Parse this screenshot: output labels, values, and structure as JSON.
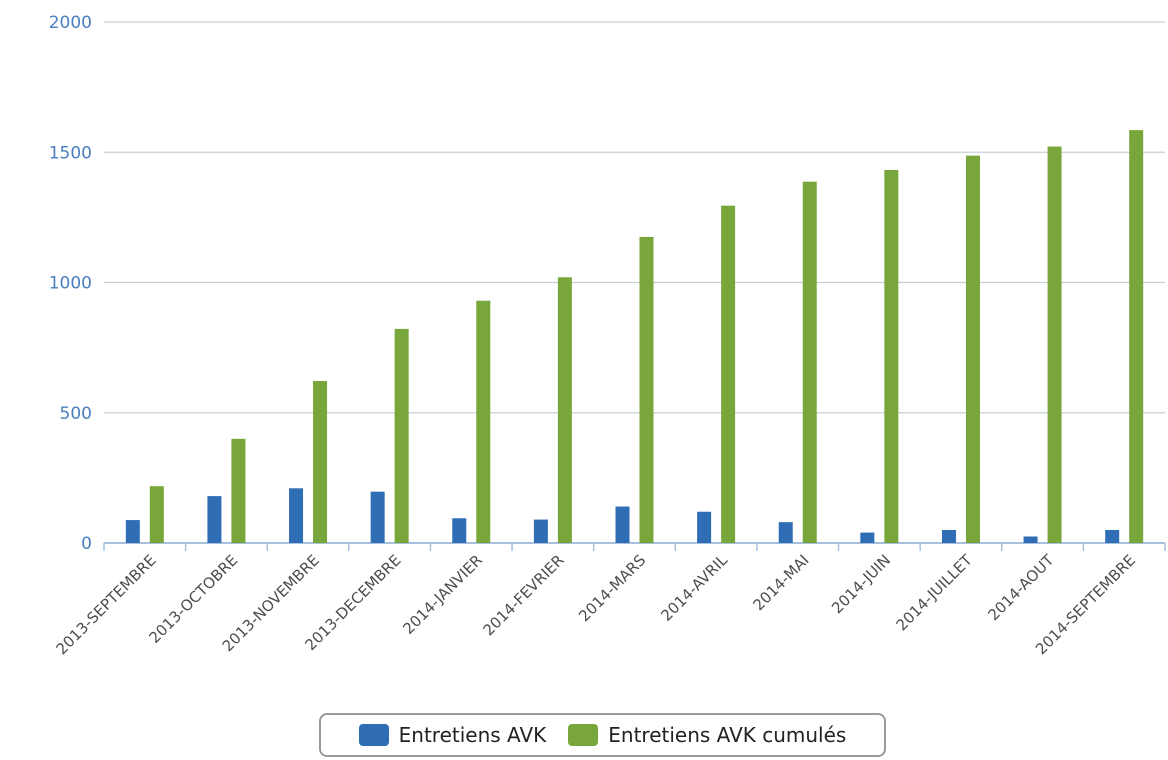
{
  "chart_data": {
    "type": "bar",
    "categories": [
      "2013-SEPTEMBRE",
      "2013-OCTOBRE",
      "2013-NOVEMBRE",
      "2013-DECEMBRE",
      "2014-JANVIER",
      "2014-FEVRIER",
      "2014-MARS",
      "2014-AVRIL",
      "2014-MAI",
      "2014-JUIN",
      "2014-JUILLET",
      "2014-AOUT",
      "2014-SEPTEMBRE"
    ],
    "series": [
      {
        "name": "Entretiens AVK",
        "color": "#2f6db5",
        "values": [
          88,
          180,
          210,
          197,
          95,
          90,
          140,
          120,
          80,
          40,
          50,
          25,
          50
        ]
      },
      {
        "name": "Entretiens AVK cumulés",
        "color": "#78a63a",
        "values": [
          218,
          400,
          622,
          822,
          930,
          1020,
          1175,
          1295,
          1387,
          1432,
          1487,
          1522,
          1585
        ]
      }
    ],
    "ylim": [
      0,
      2000
    ],
    "yticks": [
      0,
      500,
      1000,
      1500,
      2000
    ],
    "grid": true,
    "legend_position": "bottom-center",
    "title": "",
    "xlabel": "",
    "ylabel": ""
  }
}
